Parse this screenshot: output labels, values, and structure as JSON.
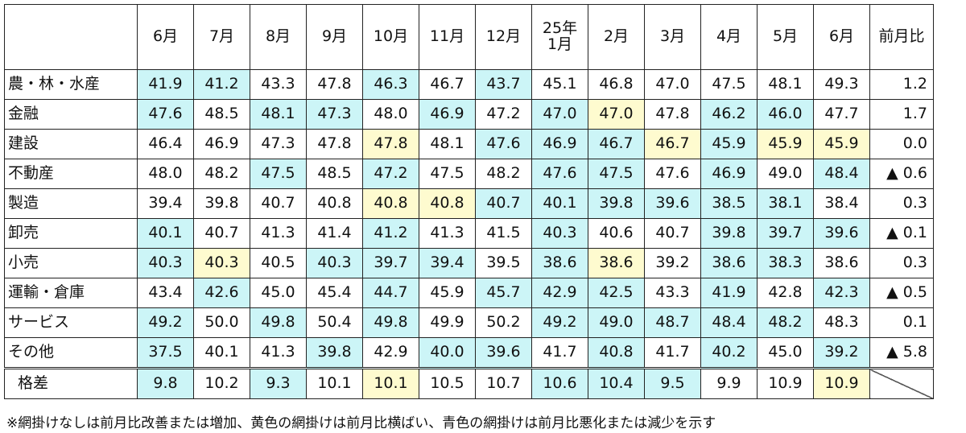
{
  "chart_data": {
    "type": "table",
    "columns": [
      "6月",
      "7月",
      "8月",
      "9月",
      "10月",
      "11月",
      "12月",
      "25年\n1月",
      "2月",
      "3月",
      "4月",
      "5月",
      "6月"
    ],
    "change_header": "前月比",
    "rows": [
      {
        "label": "農・林・水産",
        "values": [
          41.9,
          41.2,
          43.3,
          47.8,
          46.3,
          46.7,
          43.7,
          45.1,
          46.8,
          47.0,
          47.5,
          48.1,
          49.3
        ],
        "shade": [
          "b",
          "b",
          "",
          "",
          "b",
          "",
          "b",
          "",
          "",
          "",
          "",
          "",
          ""
        ],
        "change": "1.2"
      },
      {
        "label": "金融",
        "values": [
          47.6,
          48.5,
          48.1,
          47.3,
          48.0,
          46.9,
          47.2,
          47.0,
          47.0,
          47.8,
          46.2,
          46.0,
          47.7
        ],
        "shade": [
          "b",
          "",
          "b",
          "b",
          "",
          "b",
          "",
          "b",
          "y",
          "",
          "b",
          "b",
          ""
        ],
        "change": "1.7"
      },
      {
        "label": "建設",
        "values": [
          46.4,
          46.9,
          47.3,
          47.8,
          47.8,
          48.1,
          47.6,
          46.9,
          46.7,
          46.7,
          45.9,
          45.9,
          45.9
        ],
        "shade": [
          "",
          "",
          "",
          "",
          "y",
          "",
          "b",
          "b",
          "b",
          "y",
          "b",
          "y",
          "y"
        ],
        "change": "0.0"
      },
      {
        "label": "不動産",
        "values": [
          48.0,
          48.2,
          47.5,
          48.5,
          47.2,
          47.5,
          48.2,
          47.6,
          47.5,
          47.6,
          46.9,
          49.0,
          48.4
        ],
        "shade": [
          "",
          "",
          "b",
          "",
          "b",
          "",
          "",
          "b",
          "b",
          "",
          "b",
          "",
          "b"
        ],
        "change": "▲ 0.6"
      },
      {
        "label": "製造",
        "values": [
          39.4,
          39.8,
          40.7,
          40.8,
          40.8,
          40.8,
          40.7,
          40.1,
          39.8,
          39.6,
          38.5,
          38.1,
          38.4
        ],
        "shade": [
          "",
          "",
          "",
          "",
          "y",
          "y",
          "b",
          "b",
          "b",
          "b",
          "b",
          "b",
          ""
        ],
        "change": "0.3"
      },
      {
        "label": "卸売",
        "values": [
          40.1,
          40.7,
          41.3,
          41.4,
          41.2,
          41.3,
          41.5,
          40.3,
          40.6,
          40.7,
          39.8,
          39.7,
          39.6
        ],
        "shade": [
          "b",
          "",
          "",
          "",
          "b",
          "",
          "",
          "b",
          "",
          "",
          "b",
          "b",
          "b"
        ],
        "change": "▲ 0.1"
      },
      {
        "label": "小売",
        "values": [
          40.3,
          40.3,
          40.5,
          40.3,
          39.7,
          39.4,
          39.5,
          38.6,
          38.6,
          39.2,
          38.6,
          38.3,
          38.6
        ],
        "shade": [
          "b",
          "y",
          "",
          "b",
          "b",
          "b",
          "",
          "b",
          "y",
          "",
          "b",
          "b",
          ""
        ],
        "change": "0.3"
      },
      {
        "label": "運輸・倉庫",
        "values": [
          43.4,
          42.6,
          45.0,
          45.4,
          44.7,
          45.9,
          45.7,
          42.9,
          42.5,
          43.3,
          41.9,
          42.8,
          42.3
        ],
        "shade": [
          "",
          "b",
          "",
          "",
          "b",
          "",
          "b",
          "b",
          "b",
          "",
          "b",
          "",
          "b"
        ],
        "change": "▲ 0.5"
      },
      {
        "label": "サービス",
        "values": [
          49.2,
          50.0,
          49.8,
          50.4,
          49.8,
          49.9,
          50.2,
          49.2,
          49.0,
          48.7,
          48.4,
          48.2,
          48.3
        ],
        "shade": [
          "b",
          "",
          "b",
          "",
          "b",
          "",
          "",
          "b",
          "b",
          "b",
          "b",
          "b",
          ""
        ],
        "change": "0.1"
      },
      {
        "label": "その他",
        "values": [
          37.5,
          40.1,
          41.3,
          39.8,
          42.9,
          40.0,
          39.6,
          41.7,
          40.8,
          41.7,
          40.2,
          45.0,
          39.2
        ],
        "shade": [
          "b",
          "",
          "",
          "b",
          "",
          "b",
          "b",
          "",
          "b",
          "",
          "b",
          "",
          "b"
        ],
        "change": "▲ 5.8"
      }
    ],
    "gap_row": {
      "label": "格差",
      "values": [
        9.8,
        10.2,
        9.3,
        10.1,
        10.1,
        10.5,
        10.7,
        10.6,
        10.4,
        9.5,
        9.9,
        10.9,
        10.9
      ],
      "shade": [
        "b",
        "",
        "b",
        "",
        "y",
        "",
        "",
        "b",
        "b",
        "b",
        "",
        "",
        "y"
      ]
    },
    "colors": {
      "blue": "#ccf5f7",
      "yellow": "#fefbcf"
    }
  },
  "note": "※網掛けなしは前月比改善または増加、黄色の網掛けは前月比横ばい、青色の網掛けは前月比悪化または減少を示す"
}
